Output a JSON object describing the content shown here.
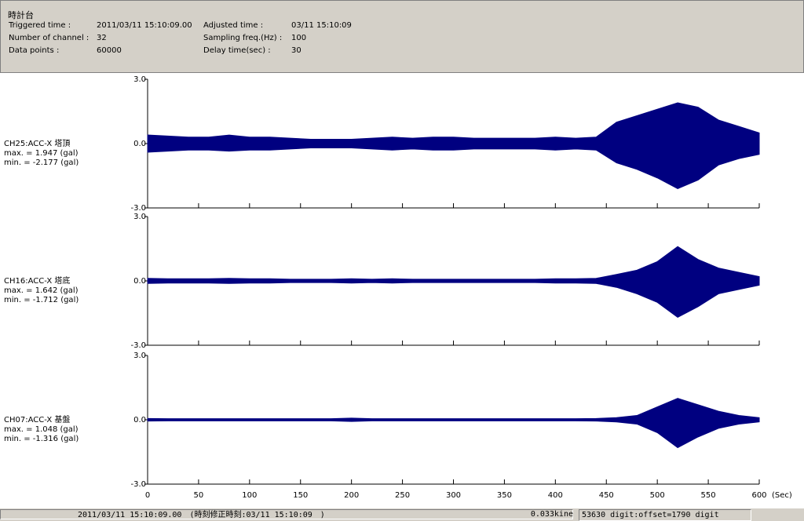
{
  "header": {
    "title": "時計台",
    "fields": [
      {
        "label": "Triggered time :",
        "value": "2011/03/11 15:10:09.00"
      },
      {
        "label": "Adjusted time :",
        "value": "03/11 15:10:09"
      },
      {
        "label": "Number of channel :",
        "value": 32
      },
      {
        "label": "Sampling freq.(Hz) :",
        "value": 100
      },
      {
        "label": "Data points :",
        "value": 60000
      },
      {
        "label": "Delay time(sec) :",
        "value": 30
      }
    ]
  },
  "chart_data": [
    {
      "type": "envelope",
      "channel": "CH25:ACC-X 塔頂",
      "max_label": "max. = 1.947 (gal)",
      "min_label": "min. = -2.177 (gal)",
      "color": "#000080",
      "ylim": [
        -3,
        3
      ],
      "yticks": [
        {
          "value": 3,
          "label": "3.0"
        },
        {
          "value": 0,
          "label": "0.0"
        },
        {
          "value": -3,
          "label": "-3.0"
        }
      ],
      "xlim": [
        0,
        600
      ],
      "xticks": [
        0,
        50,
        100,
        150,
        200,
        250,
        300,
        350,
        400,
        450,
        500,
        550,
        600
      ],
      "x": [
        0,
        20,
        40,
        60,
        80,
        100,
        120,
        140,
        160,
        180,
        200,
        220,
        240,
        260,
        280,
        300,
        320,
        340,
        360,
        380,
        400,
        420,
        440,
        460,
        480,
        500,
        520,
        540,
        560,
        580,
        600
      ],
      "upper": [
        0.4,
        0.35,
        0.3,
        0.3,
        0.4,
        0.3,
        0.3,
        0.25,
        0.2,
        0.2,
        0.2,
        0.25,
        0.3,
        0.25,
        0.3,
        0.3,
        0.25,
        0.25,
        0.25,
        0.25,
        0.3,
        0.25,
        0.3,
        1.0,
        1.3,
        1.6,
        1.9,
        1.7,
        1.1,
        0.8,
        0.5
      ],
      "lower": [
        -0.4,
        -0.35,
        -0.3,
        -0.3,
        -0.35,
        -0.3,
        -0.3,
        -0.25,
        -0.2,
        -0.2,
        -0.2,
        -0.25,
        -0.3,
        -0.25,
        -0.3,
        -0.3,
        -0.25,
        -0.25,
        -0.25,
        -0.25,
        -0.3,
        -0.25,
        -0.3,
        -0.9,
        -1.2,
        -1.6,
        -2.1,
        -1.7,
        -1.0,
        -0.7,
        -0.5
      ]
    },
    {
      "type": "envelope",
      "channel": "CH16:ACC-X 塔底",
      "max_label": "max. = 1.642 (gal)",
      "min_label": "min. = -1.712 (gal)",
      "color": "#000080",
      "ylim": [
        -3,
        3
      ],
      "yticks": [
        {
          "value": 3,
          "label": "3.0"
        },
        {
          "value": 0,
          "label": "0.0"
        },
        {
          "value": -3,
          "label": "-3.0"
        }
      ],
      "xlim": [
        0,
        600
      ],
      "xticks": [
        0,
        50,
        100,
        150,
        200,
        250,
        300,
        350,
        400,
        450,
        500,
        550,
        600
      ],
      "x": [
        0,
        20,
        40,
        60,
        80,
        100,
        120,
        140,
        160,
        180,
        200,
        220,
        240,
        260,
        280,
        300,
        320,
        340,
        360,
        380,
        400,
        420,
        440,
        460,
        480,
        500,
        520,
        540,
        560,
        580,
        600
      ],
      "upper": [
        0.12,
        0.1,
        0.1,
        0.1,
        0.12,
        0.1,
        0.1,
        0.08,
        0.08,
        0.08,
        0.1,
        0.08,
        0.1,
        0.08,
        0.08,
        0.08,
        0.08,
        0.08,
        0.08,
        0.08,
        0.1,
        0.1,
        0.12,
        0.3,
        0.5,
        0.9,
        1.6,
        1.0,
        0.6,
        0.4,
        0.2
      ],
      "lower": [
        -0.12,
        -0.1,
        -0.1,
        -0.1,
        -0.12,
        -0.1,
        -0.1,
        -0.08,
        -0.08,
        -0.08,
        -0.1,
        -0.08,
        -0.1,
        -0.08,
        -0.08,
        -0.08,
        -0.08,
        -0.08,
        -0.08,
        -0.08,
        -0.1,
        -0.1,
        -0.12,
        -0.3,
        -0.6,
        -1.0,
        -1.7,
        -1.2,
        -0.6,
        -0.4,
        -0.2
      ]
    },
    {
      "type": "envelope",
      "channel": "CH07:ACC-X 基盤",
      "max_label": "max. = 1.048 (gal)",
      "min_label": "min. = -1.316 (gal)",
      "color": "#000080",
      "ylim": [
        -3,
        3
      ],
      "yticks": [
        {
          "value": 3,
          "label": "3.0"
        },
        {
          "value": 0,
          "label": "0.0"
        },
        {
          "value": -3,
          "label": "-3.0"
        }
      ],
      "xlim": [
        0,
        600
      ],
      "xticks": [
        0,
        50,
        100,
        150,
        200,
        250,
        300,
        350,
        400,
        450,
        500,
        550,
        600
      ],
      "xtick_labels": true,
      "xlabel": "(Sec)",
      "x": [
        0,
        20,
        40,
        60,
        80,
        100,
        120,
        140,
        160,
        180,
        200,
        220,
        240,
        260,
        280,
        300,
        320,
        340,
        360,
        380,
        400,
        420,
        440,
        460,
        480,
        500,
        520,
        540,
        560,
        580,
        600
      ],
      "upper": [
        0.06,
        0.05,
        0.05,
        0.05,
        0.05,
        0.05,
        0.05,
        0.05,
        0.05,
        0.05,
        0.08,
        0.05,
        0.05,
        0.05,
        0.05,
        0.05,
        0.05,
        0.05,
        0.05,
        0.05,
        0.05,
        0.05,
        0.06,
        0.1,
        0.2,
        0.6,
        1.0,
        0.7,
        0.4,
        0.2,
        0.1
      ],
      "lower": [
        -0.06,
        -0.05,
        -0.05,
        -0.05,
        -0.05,
        -0.05,
        -0.05,
        -0.05,
        -0.05,
        -0.05,
        -0.08,
        -0.05,
        -0.05,
        -0.05,
        -0.05,
        -0.05,
        -0.05,
        -0.05,
        -0.05,
        -0.05,
        -0.05,
        -0.05,
        -0.06,
        -0.1,
        -0.2,
        -0.6,
        -1.3,
        -0.8,
        -0.4,
        -0.2,
        -0.1
      ]
    }
  ],
  "status": [
    "2011/03/11 15:10:09.00　(時刻修正時刻:03/11 15:10:09　)",
    "0.033kine",
    "53630 digit:offset=1790 digit"
  ]
}
